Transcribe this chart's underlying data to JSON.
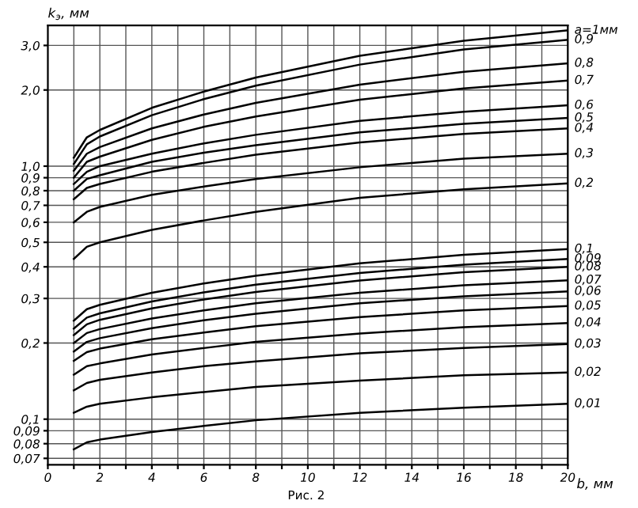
{
  "chart_data": {
    "type": "line",
    "xlabel": "b, мм",
    "ylabel": "k$_{э}$, мм",
    "log": "y",
    "grid": true,
    "marker": "none",
    "line_style": "solid",
    "x": [
      1,
      1.5,
      2,
      4,
      6,
      8,
      12,
      16,
      20
    ],
    "xlim": [
      0,
      20
    ],
    "xticks": [
      0,
      {
        "value": 1,
        "label": null
      },
      2,
      {
        "value": 3,
        "label": null
      },
      4,
      {
        "value": 5,
        "label": null
      },
      6,
      {
        "value": 7,
        "label": null
      },
      8,
      {
        "value": 9,
        "label": null
      },
      10,
      {
        "value": 11,
        "label": null
      },
      12,
      {
        "value": 13,
        "label": null
      },
      14,
      {
        "value": 15,
        "label": null
      },
      16,
      {
        "value": 17,
        "label": null
      },
      18,
      {
        "value": 19,
        "label": null
      },
      20
    ],
    "ylim": [
      0.066,
      3.6
    ],
    "yticks": [
      {
        "value": 3.0,
        "label": "3,0"
      },
      {
        "value": 2.0,
        "label": "2,0"
      },
      {
        "value": 1.0,
        "label": "1,0"
      },
      {
        "value": 0.9,
        "label": "0,9"
      },
      {
        "value": 0.8,
        "label": "0,8"
      },
      {
        "value": 0.7,
        "label": "0,7"
      },
      {
        "value": 0.6,
        "label": "0,6"
      },
      {
        "value": 0.5,
        "label": "0,5"
      },
      {
        "value": 0.4,
        "label": "0,4"
      },
      {
        "value": 0.3,
        "label": "0,3"
      },
      {
        "value": 0.2,
        "label": "0,2"
      },
      {
        "value": 0.1,
        "label": "0,1"
      },
      {
        "value": 0.09,
        "label": "0,09"
      },
      {
        "value": 0.08,
        "label": "0,08"
      },
      {
        "value": 0.07,
        "label": "0,07"
      }
    ],
    "series": [
      {
        "name": "a=1мм",
        "color": "#000000",
        "values": [
          1.08,
          1.3,
          1.39,
          1.7,
          1.97,
          2.24,
          2.73,
          3.13,
          3.44
        ]
      },
      {
        "name": "0,9",
        "color": "#000000",
        "values": [
          1.02,
          1.22,
          1.31,
          1.59,
          1.84,
          2.08,
          2.52,
          2.89,
          3.16
        ]
      },
      {
        "name": "0,8",
        "color": "#000000",
        "values": [
          0.96,
          1.12,
          1.19,
          1.41,
          1.6,
          1.78,
          2.1,
          2.36,
          2.55
        ]
      },
      {
        "name": "0,7",
        "color": "#000000",
        "values": [
          0.9,
          1.04,
          1.09,
          1.27,
          1.43,
          1.57,
          1.83,
          2.03,
          2.18
        ]
      },
      {
        "name": "0,6",
        "color": "#000000",
        "values": [
          0.85,
          0.95,
          1.0,
          1.12,
          1.23,
          1.33,
          1.51,
          1.64,
          1.74
        ]
      },
      {
        "name": "0,5",
        "color": "#000000",
        "values": [
          0.8,
          0.89,
          0.92,
          1.04,
          1.13,
          1.21,
          1.36,
          1.47,
          1.55
        ]
      },
      {
        "name": "0,4",
        "color": "#000000",
        "values": [
          0.74,
          0.82,
          0.85,
          0.95,
          1.03,
          1.11,
          1.24,
          1.34,
          1.41
        ]
      },
      {
        "name": "0,3",
        "color": "#000000",
        "values": [
          0.6,
          0.66,
          0.69,
          0.77,
          0.83,
          0.89,
          0.99,
          1.07,
          1.12
        ]
      },
      {
        "name": "0,2",
        "color": "#000000",
        "values": [
          0.43,
          0.48,
          0.5,
          0.56,
          0.61,
          0.66,
          0.75,
          0.81,
          0.855
        ]
      },
      {
        "name": "0,1",
        "color": "#000000",
        "values": [
          0.245,
          0.272,
          0.283,
          0.316,
          0.344,
          0.369,
          0.413,
          0.446,
          0.47
        ]
      },
      {
        "name": "0,09",
        "color": "#000000",
        "values": [
          0.228,
          0.252,
          0.262,
          0.292,
          0.317,
          0.34,
          0.378,
          0.408,
          0.43
        ]
      },
      {
        "name": "0,08",
        "color": "#000000",
        "values": [
          0.215,
          0.237,
          0.247,
          0.274,
          0.297,
          0.318,
          0.353,
          0.381,
          0.4
        ]
      },
      {
        "name": "0,07",
        "color": "#000000",
        "values": [
          0.2,
          0.219,
          0.227,
          0.25,
          0.269,
          0.287,
          0.316,
          0.338,
          0.354
        ]
      },
      {
        "name": "0,06",
        "color": "#000000",
        "values": [
          0.185,
          0.202,
          0.209,
          0.229,
          0.246,
          0.261,
          0.287,
          0.306,
          0.32
        ]
      },
      {
        "name": "0,05",
        "color": "#000000",
        "values": [
          0.17,
          0.184,
          0.19,
          0.207,
          0.22,
          0.233,
          0.253,
          0.269,
          0.28
        ]
      },
      {
        "name": "0,04",
        "color": "#000000",
        "values": [
          0.15,
          0.162,
          0.166,
          0.18,
          0.191,
          0.202,
          0.218,
          0.231,
          0.24
        ]
      },
      {
        "name": "0,03",
        "color": "#000000",
        "values": [
          0.13,
          0.139,
          0.143,
          0.153,
          0.162,
          0.169,
          0.182,
          0.191,
          0.198
        ]
      },
      {
        "name": "0,02",
        "color": "#000000",
        "values": [
          0.106,
          0.112,
          0.115,
          0.122,
          0.128,
          0.134,
          0.142,
          0.149,
          0.153
        ]
      },
      {
        "name": "0,01",
        "color": "#000000",
        "values": [
          0.076,
          0.081,
          0.083,
          0.089,
          0.094,
          0.099,
          0.106,
          0.111,
          0.115
        ]
      }
    ],
    "annotations": [
      "Рис. 2"
    ]
  }
}
